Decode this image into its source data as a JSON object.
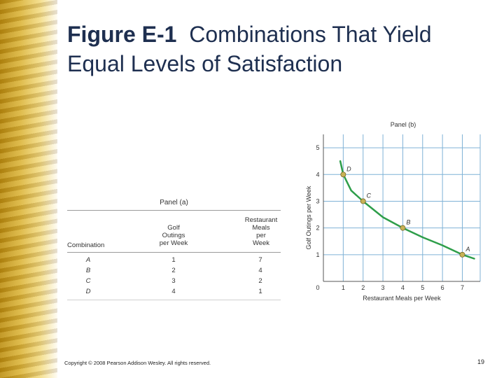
{
  "slide": {
    "title_bold": "Figure E-1",
    "title_rest_line1": "Combinations That Yield",
    "title_line2": "Equal Levels of Satisfaction",
    "copyright": "Copyright © 2008 Pearson Addison Wesley. All rights reserved.",
    "page_number": "19"
  },
  "table": {
    "panel_label": "Panel (a)",
    "headers": {
      "combination": "Combination",
      "golf": [
        "Golf",
        "Outings",
        "per Week"
      ],
      "meals": [
        "Restaurant",
        "Meals",
        "per",
        "Week"
      ]
    },
    "rows": [
      {
        "combination": "A",
        "golf": "1",
        "meals": "7"
      },
      {
        "combination": "B",
        "golf": "2",
        "meals": "4"
      },
      {
        "combination": "C",
        "golf": "3",
        "meals": "2"
      },
      {
        "combination": "D",
        "golf": "4",
        "meals": "1"
      }
    ]
  },
  "chart_data": {
    "type": "line",
    "title": "Panel (b)",
    "xlabel": "Restaurant Meals per Week",
    "ylabel": "Golf Outings per Week",
    "xlim": [
      0,
      7.9
    ],
    "ylim": [
      0,
      5.5
    ],
    "x_ticks": [
      "1",
      "2",
      "3",
      "4",
      "5",
      "6",
      "7"
    ],
    "y_ticks": [
      "1",
      "2",
      "3",
      "4",
      "5"
    ],
    "origin_label": "0",
    "grid": true,
    "curve": {
      "x": [
        0.85,
        1,
        1.4,
        2,
        3,
        4,
        5,
        6,
        7,
        7.6
      ],
      "y": [
        4.5,
        4.0,
        3.4,
        3.0,
        2.4,
        2.0,
        1.65,
        1.35,
        1.0,
        0.85
      ],
      "color": "#2e9e4a"
    },
    "points": [
      {
        "label": "A",
        "x": 7,
        "y": 1
      },
      {
        "label": "B",
        "x": 4,
        "y": 2
      },
      {
        "label": "C",
        "x": 2,
        "y": 3
      },
      {
        "label": "D",
        "x": 1,
        "y": 4
      }
    ],
    "point_color": "#c8b256",
    "grid_color": "#7fb2d6"
  }
}
